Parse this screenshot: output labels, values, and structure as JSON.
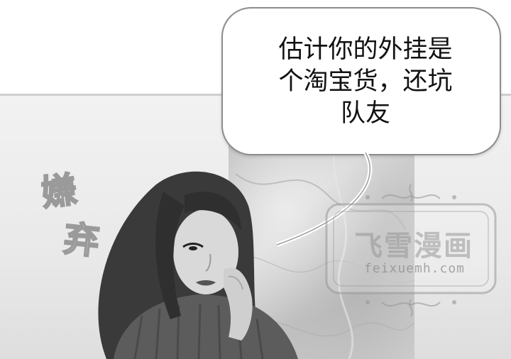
{
  "speech_bubble": {
    "lines": [
      "估计你的外挂是",
      "个淘宝货，还坑",
      "队友"
    ]
  },
  "sound_effect": {
    "text": "嫌弃"
  },
  "watermark": {
    "title": "飞雪漫画",
    "url": "feixuemh.com"
  }
}
